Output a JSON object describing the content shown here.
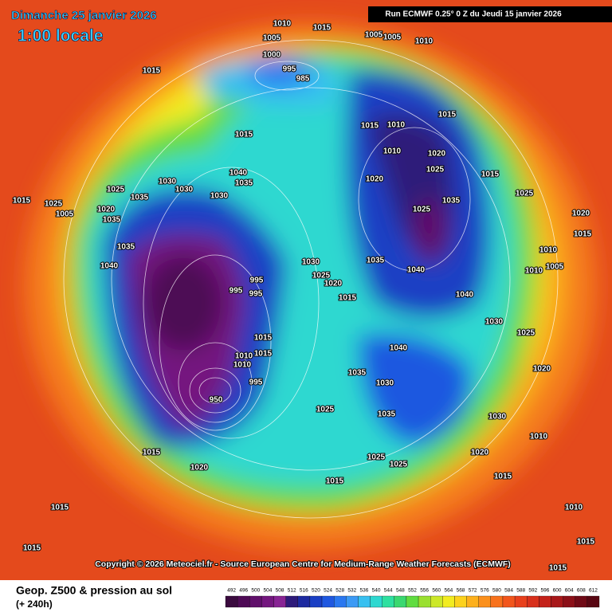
{
  "header": {
    "date": "Dimanche 25 janvier 2026",
    "time": "1:00 locale",
    "run": "Run ECMWF 0.25° 0 Z du Jeudi 15 janvier 2026"
  },
  "copyright": "Copyright © 2026 Meteociel.fr - Source European Centre for Medium-Range Weather Forecasts (ECMWF)",
  "footer": {
    "title": "Geop. Z500 & pression au sol",
    "lead": "(+ 240h)"
  },
  "isobar_labels": [
    1010,
    1015,
    1005,
    1015,
    1005,
    1005,
    1000,
    995,
    985,
    1015,
    1010,
    1015,
    1010,
    1015,
    1010,
    1020,
    1025,
    1015,
    1040,
    1030,
    1030,
    1035,
    1025,
    1035,
    1035,
    1040,
    1035,
    1030,
    1025,
    1020,
    995,
    995,
    995,
    1030,
    1025,
    1020,
    1015,
    1035,
    1040,
    1040,
    1035,
    1025,
    1020,
    1015,
    1010,
    1005,
    1010,
    995,
    950,
    1025,
    1035,
    1030,
    1035,
    1025,
    1025,
    1015,
    1020,
    1015,
    1040,
    1030,
    1025,
    1020,
    1030,
    1015,
    1015,
    1010,
    1010,
    1005,
    1015,
    1020,
    1025,
    1015,
    1015,
    1020,
    1015,
    1010,
    1010,
    1015,
    1015
  ],
  "colorbar": {
    "values": [
      492,
      496,
      500,
      504,
      508,
      512,
      516,
      520,
      524,
      528,
      532,
      536,
      540,
      544,
      548,
      552,
      556,
      560,
      564,
      568,
      572,
      576,
      580,
      584,
      588,
      592,
      596,
      600,
      604,
      608,
      612
    ],
    "colors": [
      "#3a0a3e",
      "#4e0a55",
      "#600f6a",
      "#74177f",
      "#882494",
      "#2e1a7a",
      "#1d2aa0",
      "#1a3fc4",
      "#1f58e0",
      "#2a78f0",
      "#3c9af5",
      "#38c0f0",
      "#2ed8d0",
      "#2ee0a0",
      "#3ad870",
      "#60dc40",
      "#9ae030",
      "#cce828",
      "#f2ec20",
      "#fcd21c",
      "#fdb01c",
      "#fb901c",
      "#f8721c",
      "#f2561c",
      "#e8401c",
      "#d8301c",
      "#c4221a",
      "#a8181a",
      "#8c1018",
      "#700a16",
      "#580612"
    ]
  }
}
